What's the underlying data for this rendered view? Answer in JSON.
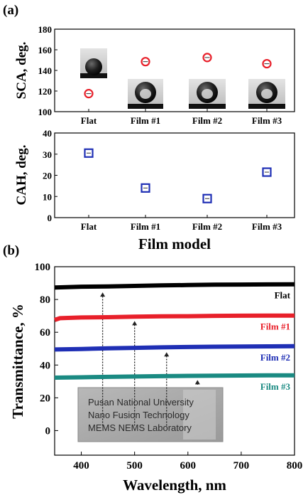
{
  "panel_labels": [
    "(a)",
    "(b)"
  ],
  "chart_data": [
    {
      "type": "scatter",
      "panel": "(a)",
      "categories": [
        "Flat",
        "Film #1",
        "Film #2",
        "Film #3"
      ],
      "values": [
        117.5,
        148.5,
        152.5,
        146.5
      ],
      "xlabel": "",
      "ylabel": "SCA, deg.",
      "ylim": [
        100,
        180
      ],
      "yticks": [
        100,
        120,
        140,
        160,
        180
      ],
      "marker": "circle",
      "color": "#e8202a",
      "grid": false
    },
    {
      "type": "scatter",
      "panel": "(a)",
      "categories": [
        "Flat",
        "Film #1",
        "Film #2",
        "Film #3"
      ],
      "values": [
        30.5,
        14,
        9,
        21.5
      ],
      "xlabel": "Film model",
      "ylabel": "CAH, deg.",
      "ylim": [
        0,
        40
      ],
      "yticks": [
        0,
        10,
        20,
        30,
        40
      ],
      "marker": "square",
      "color": "#1f2fb5",
      "grid": false
    },
    {
      "type": "line",
      "panel": "(b)",
      "xlabel": "Wavelength, nm",
      "ylabel": "Transmittance, %",
      "xlim": [
        350,
        800
      ],
      "ylim": [
        -15,
        100
      ],
      "xticks": [
        400,
        500,
        600,
        700,
        800
      ],
      "yticks": [
        0,
        20,
        40,
        60,
        80,
        100
      ],
      "grid": false,
      "legend": "inline-right",
      "series": [
        {
          "name": "Flat",
          "color": "#000000",
          "x": [
            350,
            400,
            450,
            500,
            550,
            600,
            650,
            700,
            750,
            800
          ],
          "values": [
            87.3,
            87.8,
            88.0,
            88.3,
            88.6,
            88.8,
            89.0,
            89.1,
            89.2,
            89.3
          ]
        },
        {
          "name": "Film #1",
          "color": "#e8202a",
          "x": [
            350,
            360,
            400,
            450,
            500,
            550,
            600,
            650,
            700,
            750,
            800
          ],
          "values": [
            67.5,
            68.6,
            69.0,
            69.2,
            69.5,
            69.7,
            69.8,
            70.0,
            70.1,
            70.2,
            70.2
          ]
        },
        {
          "name": "Film #2",
          "color": "#1f2fb5",
          "x": [
            350,
            400,
            450,
            500,
            550,
            600,
            650,
            700,
            750,
            800
          ],
          "values": [
            49.5,
            49.8,
            50.2,
            50.5,
            50.8,
            51.0,
            51.2,
            51.3,
            51.4,
            51.5
          ]
        },
        {
          "name": "Film #3",
          "color": "#1a8a82",
          "x": [
            350,
            400,
            450,
            500,
            550,
            600,
            650,
            700,
            750,
            800
          ],
          "values": [
            32.3,
            32.5,
            32.8,
            33.0,
            33.2,
            33.4,
            33.5,
            33.6,
            33.7,
            33.7
          ]
        }
      ],
      "arrows": [
        {
          "x": 440,
          "from": 3,
          "to": 86.5
        },
        {
          "x": 500,
          "from": 3,
          "to": 69
        },
        {
          "x": 560,
          "from": 3,
          "to": 50
        },
        {
          "x": 618,
          "from": 28,
          "to": 33
        }
      ],
      "photo_text": [
        "Pusan National University",
        "Nano Fusion Technology",
        "MEMS NEMS Laboratory"
      ]
    }
  ]
}
